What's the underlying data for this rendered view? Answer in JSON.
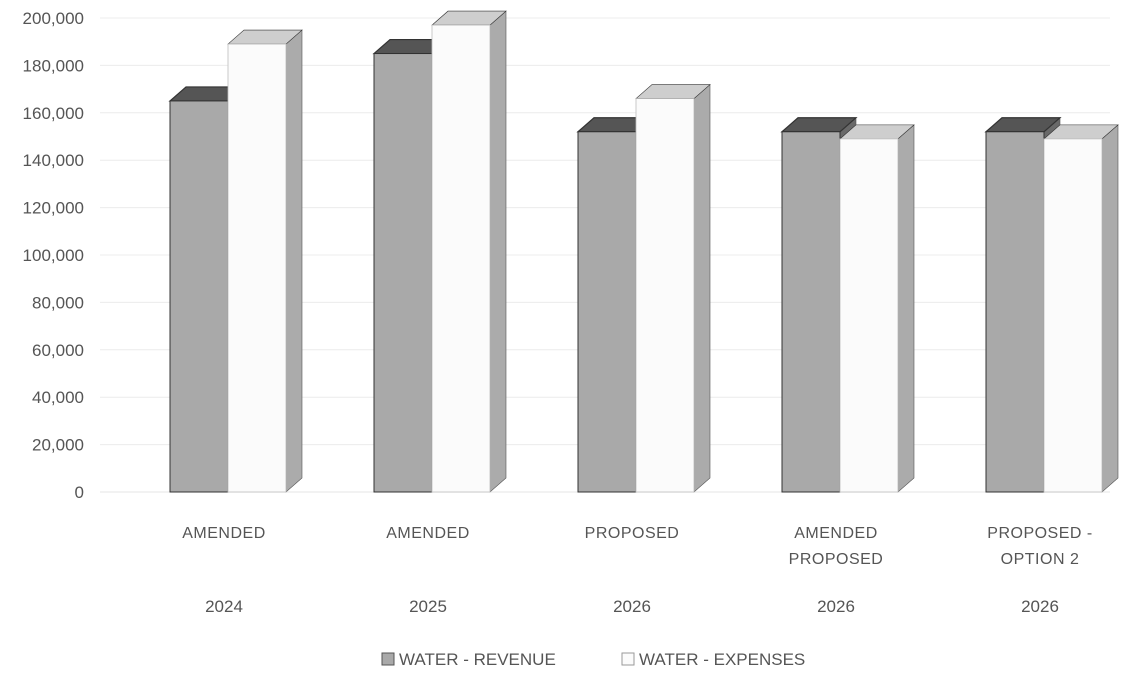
{
  "chart_data": {
    "type": "bar",
    "style": "3d-clustered-column",
    "categories": [
      {
        "label": [
          "AMENDED"
        ],
        "year": "2024"
      },
      {
        "label": [
          "AMENDED"
        ],
        "year": "2025"
      },
      {
        "label": [
          "PROPOSED"
        ],
        "year": "2026"
      },
      {
        "label": [
          "AMENDED",
          "PROPOSED"
        ],
        "year": "2026"
      },
      {
        "label": [
          "PROPOSED -",
          "OPTION 2"
        ],
        "year": "2026"
      }
    ],
    "series": [
      {
        "name": "WATER - REVENUE",
        "color": "#a9a9a9",
        "values": [
          165000,
          185000,
          152000,
          152000,
          152000
        ]
      },
      {
        "name": "WATER - EXPENSES",
        "color": "#fbfbfb",
        "values": [
          189000,
          197000,
          166000,
          149000,
          149000
        ]
      }
    ],
    "ylim": [
      0,
      200000
    ],
    "y_ticks": [
      "0",
      "20,000",
      "40,000",
      "60,000",
      "80,000",
      "100,000",
      "120,000",
      "140,000",
      "160,000",
      "180,000",
      "200,000"
    ],
    "y_tick_values": [
      0,
      20000,
      40000,
      60000,
      80000,
      100000,
      120000,
      140000,
      160000,
      180000,
      200000
    ],
    "grid": true,
    "legend_position": "bottom"
  }
}
